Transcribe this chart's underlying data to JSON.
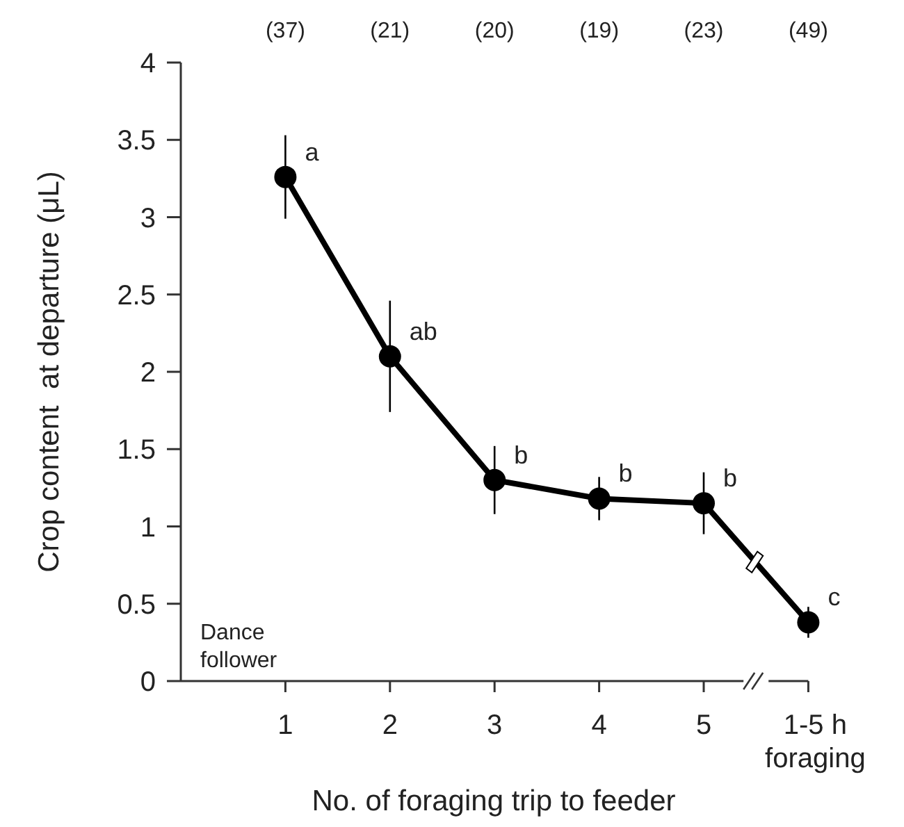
{
  "chart_data": {
    "type": "line",
    "xlabel": "No. of foraging trip to feeder",
    "ylabel": "Crop content  at departure (μL)",
    "categories": [
      "1",
      "2",
      "3",
      "4",
      "5",
      "1-5 h foraging"
    ],
    "values": [
      3.26,
      2.1,
      1.3,
      1.18,
      1.15,
      0.38
    ],
    "errors": [
      0.27,
      0.36,
      0.22,
      0.14,
      0.2,
      0.1
    ],
    "color": "#000000",
    "marker": "circle",
    "line_style": "solid",
    "ylim": [
      0,
      4
    ],
    "yticks": [
      0,
      0.5,
      1,
      1.5,
      2,
      2.5,
      3,
      3.5,
      4
    ],
    "grid": false,
    "annotations": [
      "(37)",
      "(21)",
      "(20)",
      "(19)",
      "(23)",
      "(49)",
      {
        "text": "a",
        "x": "1",
        "y": 3.26
      },
      {
        "text": "ab",
        "x": "2",
        "y": 2.1
      },
      {
        "text": "b",
        "x": "3",
        "y": 1.3
      },
      {
        "text": "b",
        "x": "4",
        "y": 1.18
      },
      {
        "text": "b",
        "x": "5",
        "y": 1.15
      },
      {
        "text": "c",
        "x": "1-5 h foraging",
        "y": 0.38
      },
      "Dance follower"
    ]
  }
}
